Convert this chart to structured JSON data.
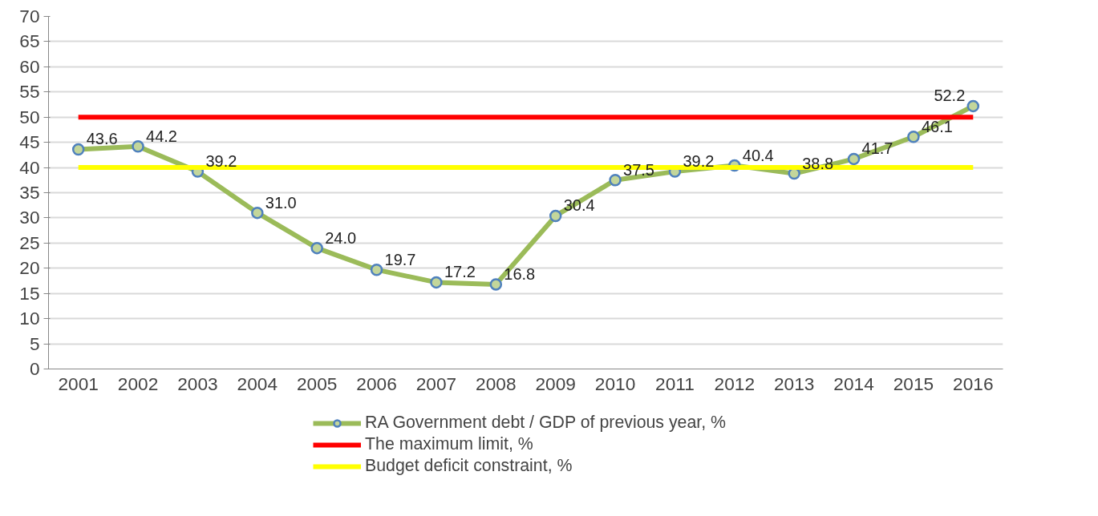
{
  "chart_data": {
    "type": "line",
    "categories": [
      "2001",
      "2002",
      "2003",
      "2004",
      "2005",
      "2006",
      "2007",
      "2008",
      "2009",
      "2010",
      "2011",
      "2012",
      "2013",
      "2014",
      "2015",
      "2016"
    ],
    "series": [
      {
        "name": "RA Government debt / GDP of previous year, %",
        "color": "#9bbb59",
        "marker": "circle",
        "values": [
          43.6,
          44.2,
          39.2,
          31.0,
          24.0,
          19.7,
          17.2,
          16.8,
          30.4,
          37.5,
          39.2,
          40.4,
          38.8,
          41.7,
          46.1,
          52.2
        ],
        "value_labels": [
          "43.6",
          "44.2",
          "39.2",
          "31.0",
          "24.0",
          "19.7",
          "17.2",
          "16.8",
          "30.4",
          "37.5",
          "39.2",
          "40.4",
          "38.8",
          "41.7",
          "46.1",
          "52.2"
        ]
      },
      {
        "name": "The maximum limit, %",
        "color": "#ff0000",
        "marker": "none",
        "values": [
          50,
          50,
          50,
          50,
          50,
          50,
          50,
          50,
          50,
          50,
          50,
          50,
          50,
          50,
          50,
          50
        ]
      },
      {
        "name": "Budget deficit constraint, %",
        "color": "#ffff00",
        "marker": "none",
        "values": [
          40,
          40,
          40,
          40,
          40,
          40,
          40,
          40,
          40,
          40,
          40,
          40,
          40,
          40,
          40,
          40
        ]
      }
    ],
    "ylim": [
      0,
      70
    ],
    "yticks": [
      0,
      5,
      10,
      15,
      20,
      25,
      30,
      35,
      40,
      45,
      50,
      55,
      60,
      65,
      70
    ],
    "grid": "y",
    "legend": "bottom"
  }
}
